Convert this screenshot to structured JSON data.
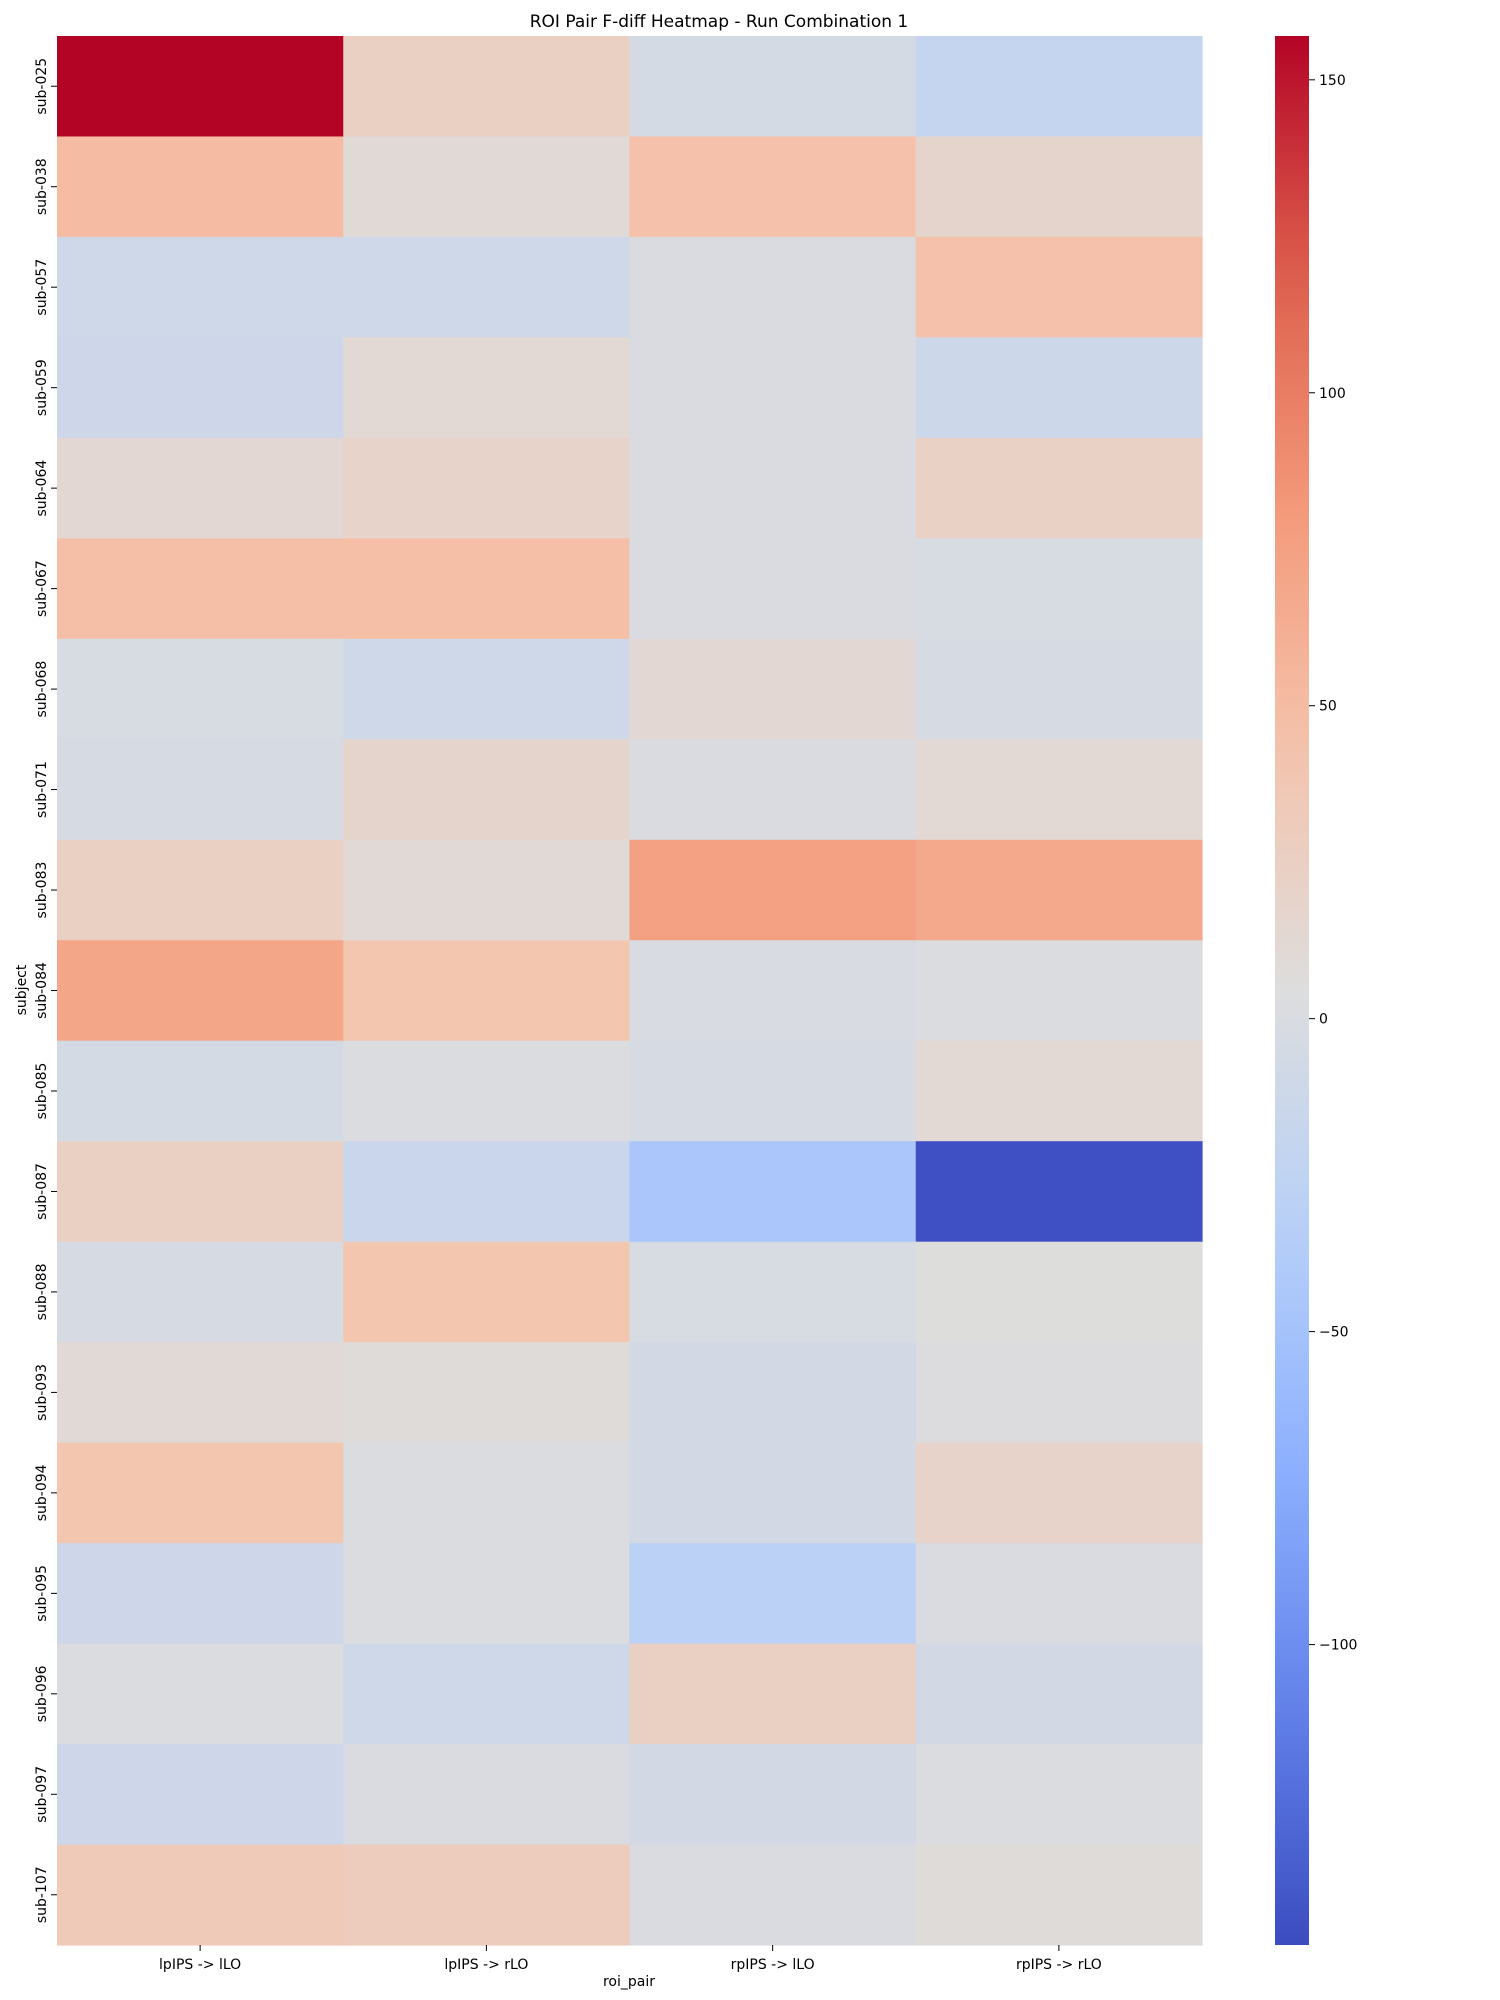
{
  "chart_data": {
    "type": "heatmap",
    "title": "ROI Pair F-diff Heatmap - Run Combination 1",
    "xlabel": "roi_pair",
    "ylabel": "subject",
    "columns": [
      "lpIPS -> lLO",
      "lpIPS -> rLO",
      "rpIPS -> lLO",
      "rpIPS -> rLO"
    ],
    "rows": [
      "sub-025",
      "sub-038",
      "sub-057",
      "sub-059",
      "sub-064",
      "sub-067",
      "sub-068",
      "sub-071",
      "sub-083",
      "sub-084",
      "sub-085",
      "sub-087",
      "sub-088",
      "sub-093",
      "sub-094",
      "sub-095",
      "sub-096",
      "sub-097",
      "sub-107"
    ],
    "values": [
      [
        157,
        25,
        -5,
        -20
      ],
      [
        50,
        10,
        45,
        18
      ],
      [
        -10,
        -10,
        0,
        45
      ],
      [
        -12,
        12,
        0,
        -13
      ],
      [
        13,
        20,
        0,
        23
      ],
      [
        48,
        48,
        0,
        -2
      ],
      [
        -2,
        -10,
        13,
        -3
      ],
      [
        -3,
        18,
        0,
        12
      ],
      [
        25,
        10,
        75,
        68
      ],
      [
        70,
        40,
        -1,
        2
      ],
      [
        -5,
        2,
        -3,
        12
      ],
      [
        25,
        -15,
        -45,
        -145
      ],
      [
        -3,
        40,
        -2,
        5
      ],
      [
        10,
        8,
        -7,
        3
      ],
      [
        40,
        2,
        -7,
        20
      ],
      [
        -12,
        2,
        -30,
        0
      ],
      [
        1,
        -10,
        25,
        -7
      ],
      [
        -12,
        0,
        -7,
        2
      ],
      [
        33,
        30,
        0,
        8
      ]
    ],
    "colormap": "coolwarm",
    "colorbar": {
      "vmin": -148,
      "vmax": 157,
      "ticks": [
        150,
        100,
        50,
        0,
        -50,
        -100
      ],
      "tick_labels": [
        "150",
        "100",
        "50",
        "0",
        "−50",
        "−100"
      ]
    }
  }
}
